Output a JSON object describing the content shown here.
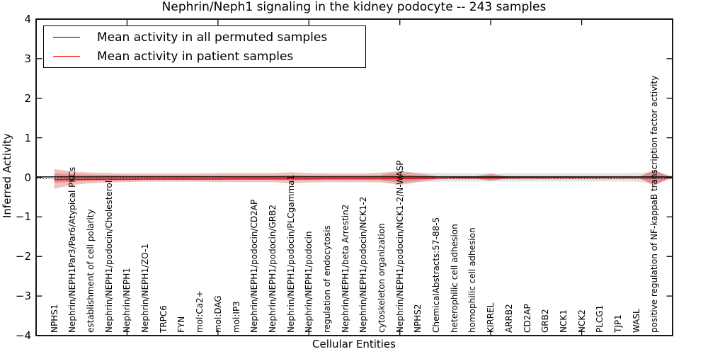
{
  "title": "Nephrin/Neph1 signaling in the kidney podocyte -- 243 samples",
  "legend": {
    "items": [
      {
        "label": "Mean activity in all permuted samples",
        "color": "#000000"
      },
      {
        "label": "Mean activity in patient samples",
        "color": "#ff0000"
      }
    ]
  },
  "axes": {
    "ylabel": "Inferred Activity",
    "xlabel": "Cellular Entities",
    "y_ticks": [
      "4",
      "3",
      "2",
      "1",
      "0",
      "−1",
      "−2",
      "−3",
      "−4"
    ],
    "y_tick_values": [
      4,
      3,
      2,
      1,
      0,
      -1,
      -2,
      -3,
      -4
    ],
    "x_tick_positions": [
      0,
      5,
      10,
      15,
      20,
      25,
      30,
      35
    ],
    "x_range": [
      0,
      35
    ],
    "y_range": [
      -4,
      4
    ],
    "grid": false
  },
  "chart_data": {
    "type": "line",
    "title": "Nephrin/Neph1 signaling in the kidney podocyte -- 243 samples",
    "xlabel": "Cellular Entities",
    "ylabel": "Inferred Activity",
    "ylim": [
      -4,
      4
    ],
    "legend_position": "upper left",
    "categories": [
      "NPHS1",
      "Nephrin/NEPH1Par3/Par6/Atypical PKCs",
      "establishment of cell polarity",
      "Nephrin/NEPH1/podocin/Cholesterol",
      "Nephrin/NEPH1",
      "Nephrin/NEPH1/ZO-1",
      "TRPC6",
      "FYN",
      "mol:Ca2+",
      "mol:DAG",
      "mol:IP3",
      "Nephrin/NEPH1/podocin/CD2AP",
      "Nephrin/NEPH1/podocin/GRB2",
      "Nephrin/NEPH1/podocin/PLCgamma1",
      "Nephrin/NEPH1/podocin",
      "regulation of endocytosis",
      "Nephrin/NEPH1/beta Arrestin2",
      "Nephrin/NEPH1/podocin/NCK1-2",
      "cytoskeleton organization",
      "Nephrin/NEPH1/podocin/NCK1-2/N-WASP",
      "NPHS2",
      "ChemicalAbstracts:57-88-5",
      "heterophilic cell adhesion",
      "homophilic cell adhesion",
      "KIRREL",
      "ARRB2",
      "CD2AP",
      "GRB2",
      "NCK1",
      "NCK2",
      "PLCG1",
      "TJP1",
      "WASL",
      "positive regulation of NF-kappaB transcription factor activity"
    ],
    "series": [
      {
        "name": "Mean activity in all permuted samples",
        "color": "#000000",
        "style": "solid",
        "span_full_width": true,
        "values": [
          0,
          0,
          0,
          0,
          0,
          0,
          0,
          0,
          0,
          0,
          0,
          0,
          0,
          0,
          0,
          0,
          0,
          0,
          0,
          0,
          0,
          0,
          0,
          0,
          0,
          0,
          0,
          0,
          0,
          0,
          0,
          0,
          0,
          0
        ]
      },
      {
        "name": "zero baseline (dotted)",
        "color": "#000000",
        "style": "dotted",
        "span_full_width": true,
        "values": [
          0,
          0,
          0,
          0,
          0,
          0,
          0,
          0,
          0,
          0,
          0,
          0,
          0,
          0,
          0,
          0,
          0,
          0,
          0,
          0,
          0,
          0,
          0,
          0,
          0,
          0,
          0,
          0,
          0,
          0,
          0,
          0,
          0,
          0
        ]
      },
      {
        "name": "Mean activity in patient samples",
        "color": "#e60f0f",
        "style": "solid",
        "span_full_width": false,
        "values": [
          -0.06,
          -0.055,
          -0.05,
          -0.05,
          -0.05,
          -0.045,
          -0.045,
          -0.045,
          -0.045,
          -0.045,
          -0.04,
          -0.04,
          -0.04,
          -0.04,
          -0.04,
          -0.035,
          -0.035,
          -0.035,
          -0.035,
          -0.03,
          -0.025,
          -0.02,
          -0.015,
          -0.015,
          -0.015,
          -0.015,
          -0.012,
          -0.012,
          -0.012,
          -0.012,
          -0.01,
          -0.01,
          -0.01,
          -0.01
        ]
      }
    ],
    "bands": [
      {
        "name": "permuted-samples-band",
        "color": "rgba(125,125,125,0.22)",
        "start": 18,
        "extend_right": 0.05,
        "upper": [
          0.08,
          0.15,
          0.12,
          0.11,
          0.1,
          0.1,
          0.1,
          0.1,
          0.1,
          0.1,
          0.1,
          0.1,
          0.1,
          0.1,
          0.11,
          0.14
        ],
        "lower": [
          0.08,
          0.15,
          0.12,
          0.11,
          0.1,
          0.1,
          0.1,
          0.1,
          0.1,
          0.1,
          0.1,
          0.1,
          0.1,
          0.1,
          0.11,
          0.16
        ]
      },
      {
        "name": "patient-band-outer",
        "color": "rgba(204,51,51,0.30)",
        "start": 0,
        "extend_right": 0,
        "upper": [
          0.21,
          0.15,
          0.12,
          0.11,
          0.1,
          0.1,
          0.1,
          0.1,
          0.1,
          0.11,
          0.11,
          0.11,
          0.11,
          0.13,
          0.11,
          0.1,
          0.1,
          0.1,
          0.12,
          0.16,
          0.1,
          0.04
        ],
        "lower": [
          0.29,
          0.19,
          0.15,
          0.13,
          0.12,
          0.11,
          0.11,
          0.11,
          0.11,
          0.12,
          0.12,
          0.12,
          0.12,
          0.15,
          0.13,
          0.12,
          0.12,
          0.12,
          0.13,
          0.19,
          0.12,
          0.05
        ]
      },
      {
        "name": "patient-band-inner",
        "color": "rgba(204,51,51,0.32)",
        "start": 0,
        "extend_right": 0,
        "upper": [
          0.1,
          0.08,
          0.07,
          0.06,
          0.05,
          0.05,
          0.05,
          0.05,
          0.05,
          0.05,
          0.05,
          0.05,
          0.05,
          0.06,
          0.05,
          0.05,
          0.05,
          0.05,
          0.06,
          0.08,
          0.05,
          0.02
        ],
        "lower": [
          0.14,
          0.11,
          0.09,
          0.08,
          0.07,
          0.06,
          0.06,
          0.06,
          0.06,
          0.06,
          0.06,
          0.06,
          0.06,
          0.08,
          0.07,
          0.06,
          0.06,
          0.06,
          0.07,
          0.1,
          0.06,
          0.03
        ]
      }
    ],
    "bulges": [
      {
        "name": "red-bulge-kirrel",
        "center": 24,
        "half_span": 1.2,
        "upper": 0.09,
        "lower": 0.09,
        "color": "rgba(204,51,51,0.40)"
      },
      {
        "name": "red-bulge-nfkappab",
        "center": 33,
        "half_span": 0.9,
        "upper": 0.19,
        "lower": 0.21,
        "color": "rgba(204,51,51,0.45)"
      }
    ]
  }
}
